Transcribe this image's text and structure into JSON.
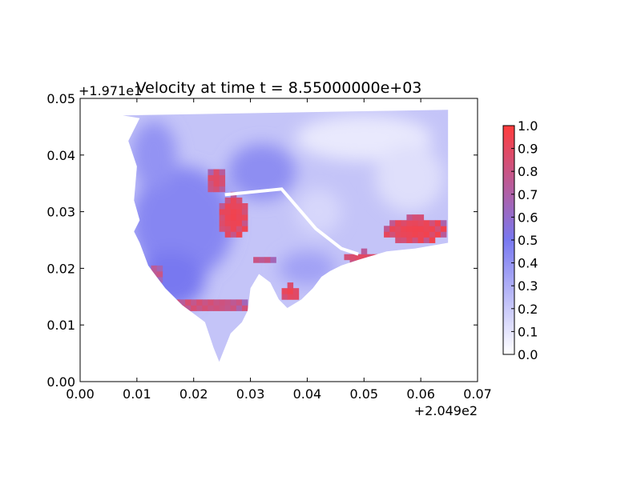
{
  "chart_data": {
    "type": "heatmap",
    "title": "Velocity at time t = 8.55000000e+03",
    "xlabel": "",
    "ylabel": "",
    "x_offset_label": "+2.049e2",
    "y_offset_label": "+1.971e1",
    "xlim": [
      0.0,
      0.07
    ],
    "ylim": [
      0.0,
      0.05
    ],
    "x_ticks": [
      0.0,
      0.01,
      0.02,
      0.03,
      0.04,
      0.05,
      0.06,
      0.07
    ],
    "x_tick_labels": [
      "0.00",
      "0.01",
      "0.02",
      "0.03",
      "0.04",
      "0.05",
      "0.06",
      "0.07"
    ],
    "y_ticks": [
      0.0,
      0.01,
      0.02,
      0.03,
      0.04,
      0.05
    ],
    "y_tick_labels": [
      "0.00",
      "0.01",
      "0.02",
      "0.03",
      "0.04",
      "0.05"
    ],
    "grid": false,
    "colorbar": {
      "range": [
        0.0,
        1.0
      ],
      "ticks": [
        0.0,
        0.1,
        0.2,
        0.3,
        0.4,
        0.5,
        0.6,
        0.7,
        0.8,
        0.9,
        1.0
      ],
      "tick_labels": [
        "0.0",
        "0.1",
        "0.2",
        "0.3",
        "0.4",
        "0.5",
        "0.6",
        "0.7",
        "0.8",
        "0.9",
        "1.0"
      ],
      "colors": [
        "#ffffff",
        "#7878f0",
        "#ff3c3c"
      ]
    },
    "domain_outline": [
      [
        0.0075,
        0.047
      ],
      [
        0.0648,
        0.048
      ],
      [
        0.0648,
        0.0245
      ],
      [
        0.059,
        0.0235
      ],
      [
        0.054,
        0.023
      ],
      [
        0.049,
        0.0215
      ],
      [
        0.046,
        0.0205
      ],
      [
        0.044,
        0.0195
      ],
      [
        0.0425,
        0.0185
      ],
      [
        0.041,
        0.0165
      ],
      [
        0.039,
        0.0145
      ],
      [
        0.0365,
        0.013
      ],
      [
        0.035,
        0.0145
      ],
      [
        0.0335,
        0.0175
      ],
      [
        0.0315,
        0.019
      ],
      [
        0.03,
        0.0165
      ],
      [
        0.0295,
        0.0125
      ],
      [
        0.0285,
        0.0105
      ],
      [
        0.0265,
        0.0085
      ],
      [
        0.0255,
        0.006
      ],
      [
        0.0245,
        0.0035
      ],
      [
        0.0235,
        0.006
      ],
      [
        0.022,
        0.0105
      ],
      [
        0.018,
        0.0135
      ],
      [
        0.015,
        0.0165
      ],
      [
        0.012,
        0.0205
      ],
      [
        0.0105,
        0.0245
      ],
      [
        0.0095,
        0.0265
      ],
      [
        0.0105,
        0.0285
      ],
      [
        0.0095,
        0.032
      ],
      [
        0.01,
        0.038
      ],
      [
        0.0085,
        0.0425
      ],
      [
        0.0105,
        0.0465
      ],
      [
        0.0075,
        0.047
      ]
    ],
    "high_velocity_regions": [
      {
        "x": [
          0.0245,
          0.0295
        ],
        "y": [
          0.0255,
          0.033
        ],
        "value": 0.95
      },
      {
        "x": [
          0.0225,
          0.0255
        ],
        "y": [
          0.0335,
          0.0375
        ],
        "value": 0.9
      },
      {
        "x": [
          0.0355,
          0.0385
        ],
        "y": [
          0.0145,
          0.017
        ],
        "value": 0.95
      },
      {
        "x": [
          0.0465,
          0.053
        ],
        "y": [
          0.0205,
          0.023
        ],
        "value": 0.9
      },
      {
        "x": [
          0.0535,
          0.0648
        ],
        "y": [
          0.0245,
          0.029
        ],
        "value": 0.95
      },
      {
        "x": [
          0.0135,
          0.0305
        ],
        "y": [
          0.0125,
          0.0145
        ],
        "value": 0.85
      },
      {
        "x": [
          0.0125,
          0.0145
        ],
        "y": [
          0.0175,
          0.0205
        ],
        "value": 0.8
      },
      {
        "x": [
          0.0305,
          0.0345
        ],
        "y": [
          0.021,
          0.0225
        ],
        "value": 0.8
      }
    ],
    "wall_line": [
      [
        0.0255,
        0.033
      ],
      [
        0.0355,
        0.034
      ],
      [
        0.0415,
        0.027
      ],
      [
        0.046,
        0.0235
      ],
      [
        0.049,
        0.0225
      ]
    ]
  }
}
